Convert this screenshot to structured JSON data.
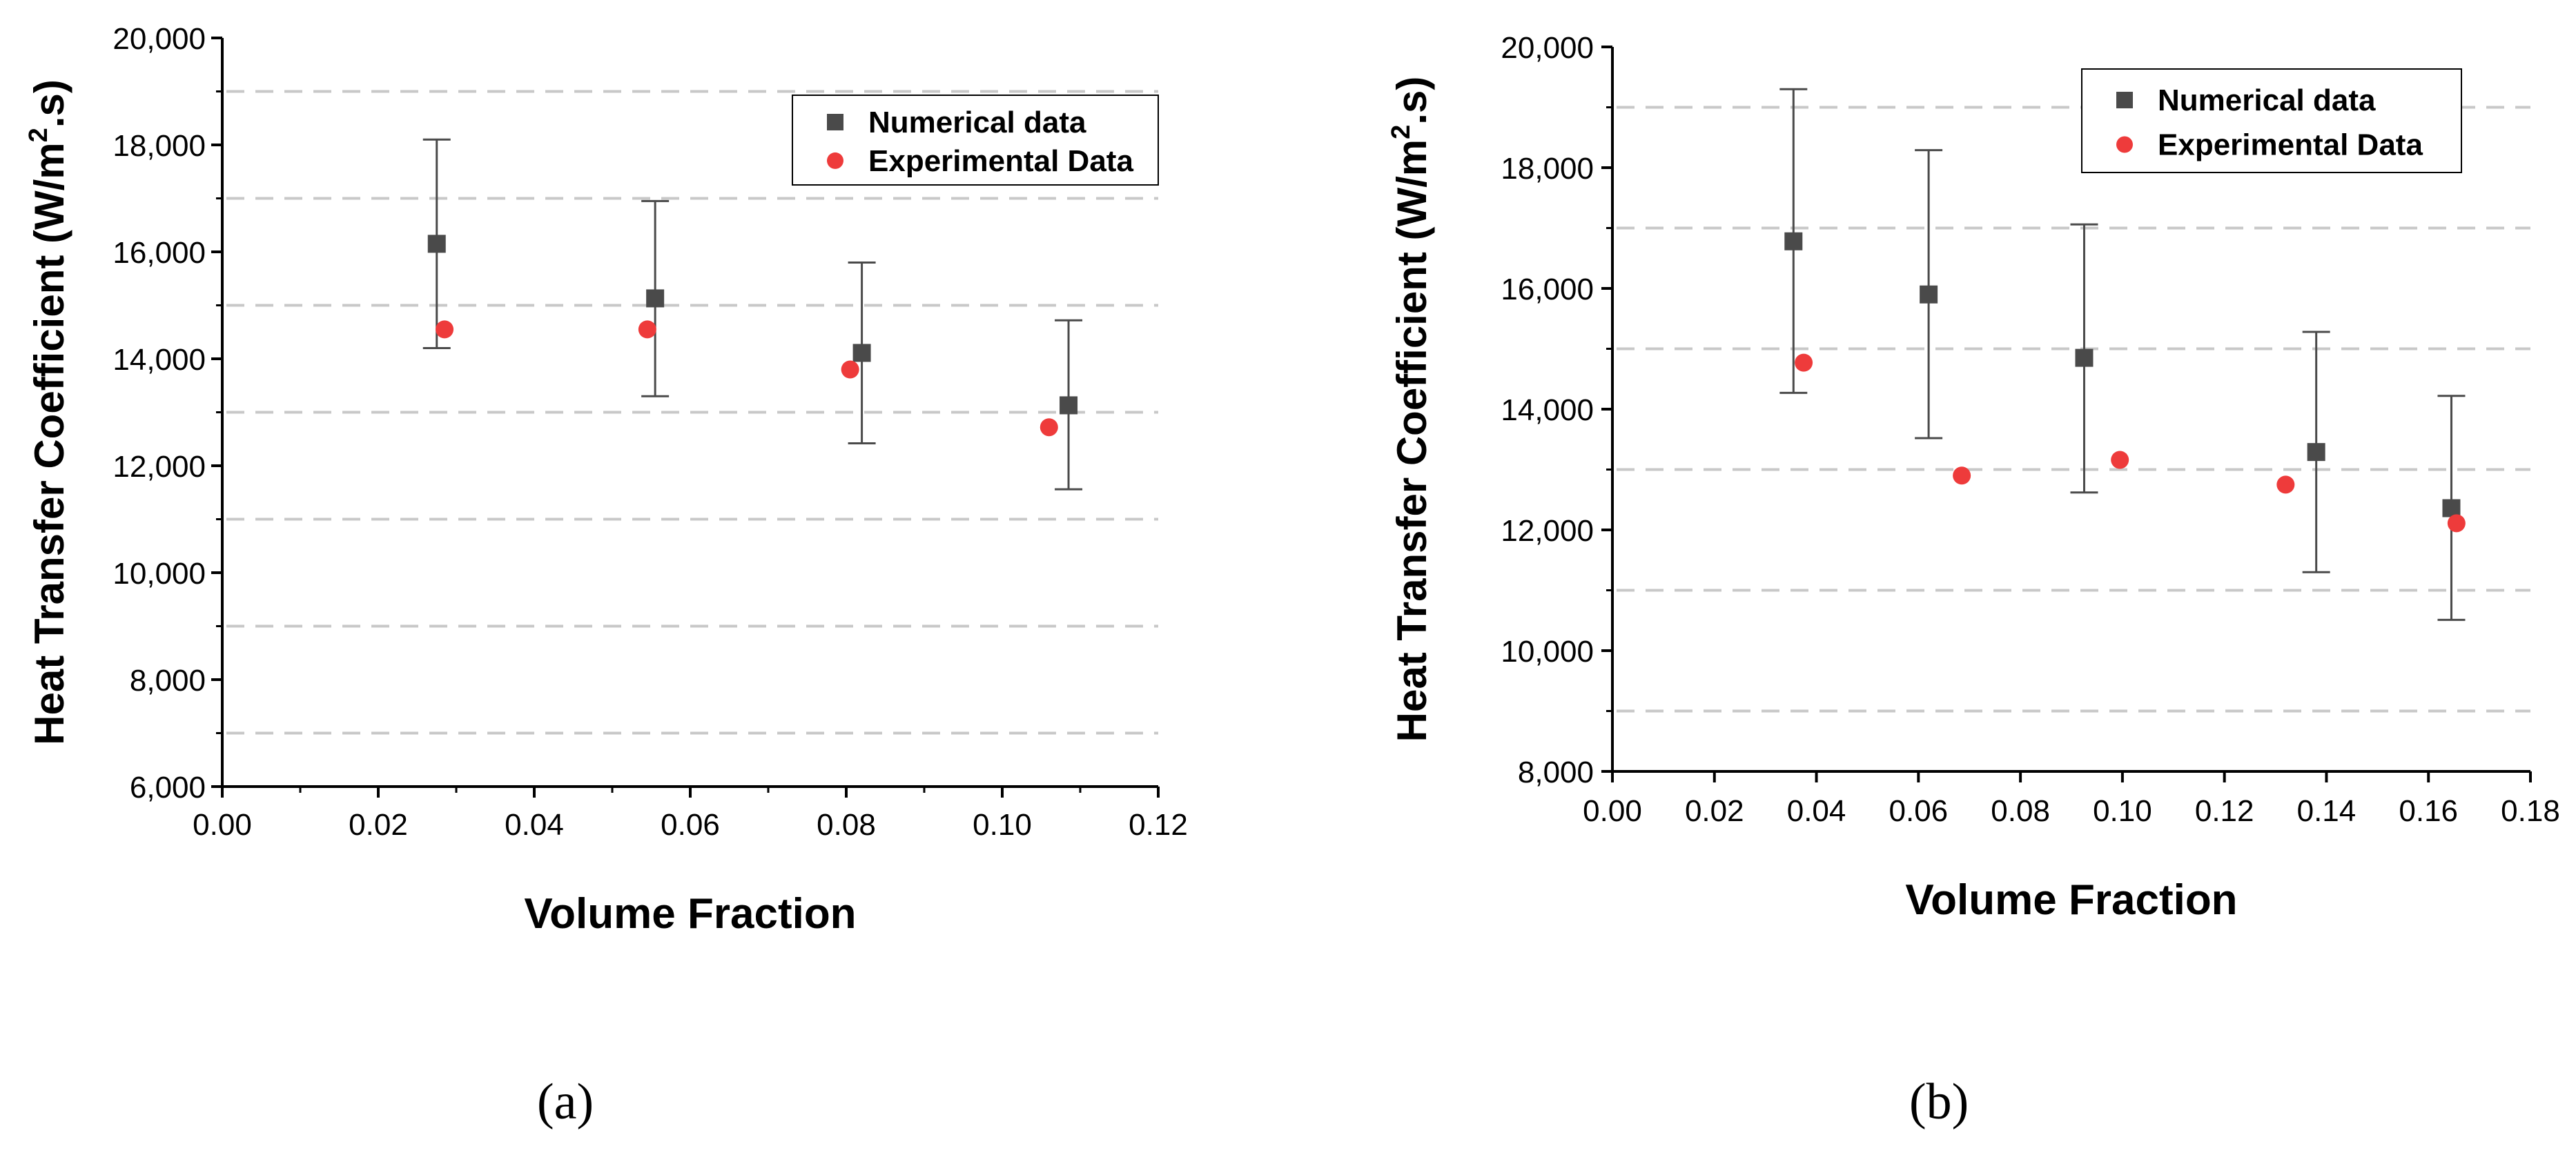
{
  "chart_data": [
    {
      "id": "a",
      "type": "scatter",
      "panel_label": "(a)",
      "xlabel": "Volume Fraction",
      "ylabel": "Heat Transfer Coefficient (W/m",
      "ylabel_superscript": "2",
      "ylabel_suffix": ".s)",
      "xlim": [
        0,
        0.12
      ],
      "ylim": [
        6000,
        20000
      ],
      "x_ticks": [
        "0.00",
        "0.02",
        "0.04",
        "0.06",
        "0.08",
        "0.10",
        "0.12"
      ],
      "x_tick_values": [
        0,
        0.02,
        0.04,
        0.06,
        0.08,
        0.1,
        0.12
      ],
      "y_ticks": [
        "6,000",
        "8,000",
        "10,000",
        "12,000",
        "14,000",
        "16,000",
        "18,000",
        "20,000"
      ],
      "y_tick_values": [
        6000,
        8000,
        10000,
        12000,
        14000,
        16000,
        18000,
        20000
      ],
      "grid_lines": [
        7000,
        9000,
        11000,
        13000,
        15000,
        17000,
        19000
      ],
      "legend_position": "top-right",
      "series": [
        {
          "name": "Numerical data",
          "marker": "square",
          "color": "#4a4a4a",
          "points": [
            {
              "x": 0.0275,
              "y": 16150,
              "err_low": 14200,
              "err_high": 18100
            },
            {
              "x": 0.0555,
              "y": 15130,
              "err_low": 13300,
              "err_high": 16950
            },
            {
              "x": 0.082,
              "y": 14110,
              "err_low": 12420,
              "err_high": 15800
            },
            {
              "x": 0.1085,
              "y": 13130,
              "err_low": 11560,
              "err_high": 14720
            }
          ]
        },
        {
          "name": "Experimental Data",
          "marker": "circle",
          "color": "#ee3b3b",
          "points": [
            {
              "x": 0.0285,
              "y": 14550
            },
            {
              "x": 0.0545,
              "y": 14550
            },
            {
              "x": 0.0805,
              "y": 13800
            },
            {
              "x": 0.106,
              "y": 12720
            }
          ]
        }
      ]
    },
    {
      "id": "b",
      "type": "scatter",
      "panel_label": "(b)",
      "xlabel": "Volume Fraction",
      "ylabel": "Heat Transfer Coefficient (W/m",
      "ylabel_superscript": "2",
      "ylabel_suffix": ".s)",
      "xlim": [
        0,
        0.18
      ],
      "ylim": [
        8000,
        20000
      ],
      "x_ticks": [
        "0.00",
        "0.02",
        "0.04",
        "0.06",
        "0.08",
        "0.10",
        "0.12",
        "0.14",
        "0.16",
        "0.18"
      ],
      "x_tick_values": [
        0,
        0.02,
        0.04,
        0.06,
        0.08,
        0.1,
        0.12,
        0.14,
        0.16,
        0.18
      ],
      "y_ticks": [
        "8,000",
        "10,000",
        "12,000",
        "14,000",
        "16,000",
        "18,000",
        "20,000"
      ],
      "y_tick_values": [
        8000,
        10000,
        12000,
        14000,
        16000,
        18000,
        20000
      ],
      "grid_lines": [
        9000,
        11000,
        13000,
        15000,
        17000,
        19000
      ],
      "legend_position": "top-right",
      "series": [
        {
          "name": "Numerical data",
          "marker": "square",
          "color": "#4a4a4a",
          "points": [
            {
              "x": 0.0355,
              "y": 16780,
              "err_low": 14270,
              "err_high": 19300
            },
            {
              "x": 0.062,
              "y": 15900,
              "err_low": 13520,
              "err_high": 18290
            },
            {
              "x": 0.0925,
              "y": 14850,
              "err_low": 12620,
              "err_high": 17060
            },
            {
              "x": 0.138,
              "y": 13290,
              "err_low": 11300,
              "err_high": 15280
            },
            {
              "x": 0.1645,
              "y": 12360,
              "err_low": 10510,
              "err_high": 14220
            }
          ]
        },
        {
          "name": "Experimental Data",
          "marker": "circle",
          "color": "#ee3b3b",
          "points": [
            {
              "x": 0.0375,
              "y": 14770
            },
            {
              "x": 0.0685,
              "y": 12900
            },
            {
              "x": 0.0995,
              "y": 13160
            },
            {
              "x": 0.132,
              "y": 12750
            },
            {
              "x": 0.1655,
              "y": 12110
            }
          ]
        }
      ]
    }
  ]
}
